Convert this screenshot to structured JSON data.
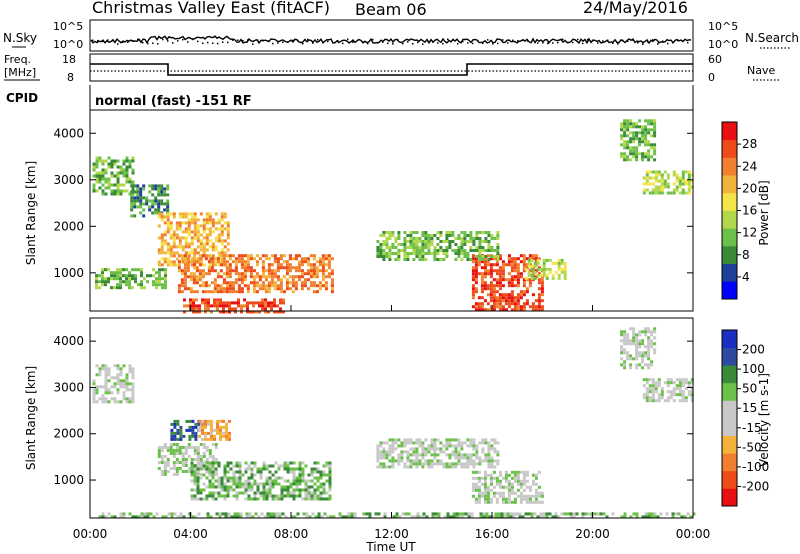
{
  "header": {
    "title": "Christmas Valley East (fitACF)",
    "beam": "Beam 06",
    "date": "24/May/2016"
  },
  "top_panels": {
    "nsky_label": "N.Sky",
    "nsky_ticks": [
      "10^5",
      "10^0"
    ],
    "nsearch_label": "N.Search",
    "nsearch_ticks": [
      "10^5",
      "10^0"
    ],
    "freq_label_1": "Freq.",
    "freq_label_2": "[MHz]",
    "freq_ticks": [
      "18",
      "8"
    ],
    "nave_label": "Nave",
    "nave_ticks": [
      "60",
      "0"
    ],
    "cpid_label": "CPID",
    "cpid_text": "normal (fast) -151 RF"
  },
  "axis": {
    "xlabel": "Time UT",
    "x_ticks": [
      "00:00",
      "04:00",
      "08:00",
      "12:00",
      "16:00",
      "20:00",
      "00:00"
    ],
    "ylabel": "Slant Range [km]",
    "y_ticks": [
      "4000",
      "3000",
      "2000",
      "1000"
    ]
  },
  "chart_data": [
    {
      "type": "heatmap",
      "ylabel": "Slant Range [km]",
      "xlabel": "Time UT",
      "xlim_hours": [
        0,
        24
      ],
      "ylim_km": [
        180,
        4500
      ],
      "colorbar_label": "Power [dB]",
      "colorbar_ticks": [
        "28",
        "24",
        "20",
        "16",
        "12",
        "8",
        "4"
      ],
      "colorbar_colors": [
        "#0000ff",
        "#1e3f9a",
        "#3a8a3a",
        "#6cc04a",
        "#b0d84a",
        "#f5e34a",
        "#f2b33a",
        "#f08030",
        "#ef4a1a",
        "#e81010"
      ],
      "echo_regions": [
        {
          "t_start": 0.1,
          "t_end": 1.7,
          "r_start": 2700,
          "r_end": 3500,
          "level": 3
        },
        {
          "t_start": 1.6,
          "t_end": 3.1,
          "r_start": 2200,
          "r_end": 2900,
          "level": 2
        },
        {
          "t_start": 2.7,
          "t_end": 5.5,
          "r_start": 1200,
          "r_end": 2300,
          "level": 6
        },
        {
          "t_start": 3.5,
          "t_end": 9.6,
          "r_start": 600,
          "r_end": 1400,
          "level": 7
        },
        {
          "t_start": 0.2,
          "t_end": 3.0,
          "r_start": 700,
          "r_end": 1100,
          "level": 3
        },
        {
          "t_start": 3.7,
          "t_end": 7.7,
          "r_start": 180,
          "r_end": 450,
          "level": 8
        },
        {
          "t_start": 15.2,
          "t_end": 18.0,
          "r_start": 200,
          "r_end": 1400,
          "level": 8
        },
        {
          "t_start": 11.4,
          "t_end": 16.2,
          "r_start": 1300,
          "r_end": 1900,
          "level": 3
        },
        {
          "t_start": 17.3,
          "t_end": 18.9,
          "r_start": 900,
          "r_end": 1300,
          "level": 4
        },
        {
          "t_start": 22.0,
          "t_end": 24.0,
          "r_start": 2700,
          "r_end": 3200,
          "level": 4
        },
        {
          "t_start": 21.1,
          "t_end": 22.5,
          "r_start": 3400,
          "r_end": 4300,
          "level": 3
        }
      ]
    },
    {
      "type": "heatmap",
      "ylabel": "Slant Range [km]",
      "xlabel": "Time UT",
      "xlim_hours": [
        0,
        24
      ],
      "ylim_km": [
        180,
        4500
      ],
      "colorbar_label": "Velocity [m s-1]",
      "colorbar_ticks": [
        "200",
        "100",
        "50",
        "15",
        "-15",
        "-50",
        "-100",
        "-200"
      ],
      "colorbar_colors": [
        "#e81010",
        "#ef4a1a",
        "#f08030",
        "#f5b23a",
        "#c8c8c8",
        "#c8c8c8",
        "#6cc04a",
        "#3a8a3a",
        "#2e4aa0",
        "#1a2fbf"
      ],
      "echo_regions": [
        {
          "t_start": 0.1,
          "t_end": 1.7,
          "r_start": 2700,
          "r_end": 3500,
          "level": 5
        },
        {
          "t_start": 2.7,
          "t_end": 5.0,
          "r_start": 1100,
          "r_end": 1800,
          "level": 5
        },
        {
          "t_start": 3.2,
          "t_end": 4.3,
          "r_start": 1900,
          "r_end": 2300,
          "level": 8
        },
        {
          "t_start": 4.3,
          "t_end": 5.5,
          "r_start": 1900,
          "r_end": 2300,
          "level": 3
        },
        {
          "t_start": 4.0,
          "t_end": 9.6,
          "r_start": 600,
          "r_end": 1400,
          "level": 6
        },
        {
          "t_start": 0.1,
          "t_end": 24.0,
          "r_start": 180,
          "r_end": 300,
          "level": 6
        },
        {
          "t_start": 15.2,
          "t_end": 18.0,
          "r_start": 500,
          "r_end": 1200,
          "level": 5
        },
        {
          "t_start": 11.4,
          "t_end": 16.2,
          "r_start": 1300,
          "r_end": 1900,
          "level": 5
        },
        {
          "t_start": 22.0,
          "t_end": 24.0,
          "r_start": 2700,
          "r_end": 3200,
          "level": 5
        },
        {
          "t_start": 21.1,
          "t_end": 22.5,
          "r_start": 3400,
          "r_end": 4300,
          "level": 5
        }
      ]
    }
  ]
}
